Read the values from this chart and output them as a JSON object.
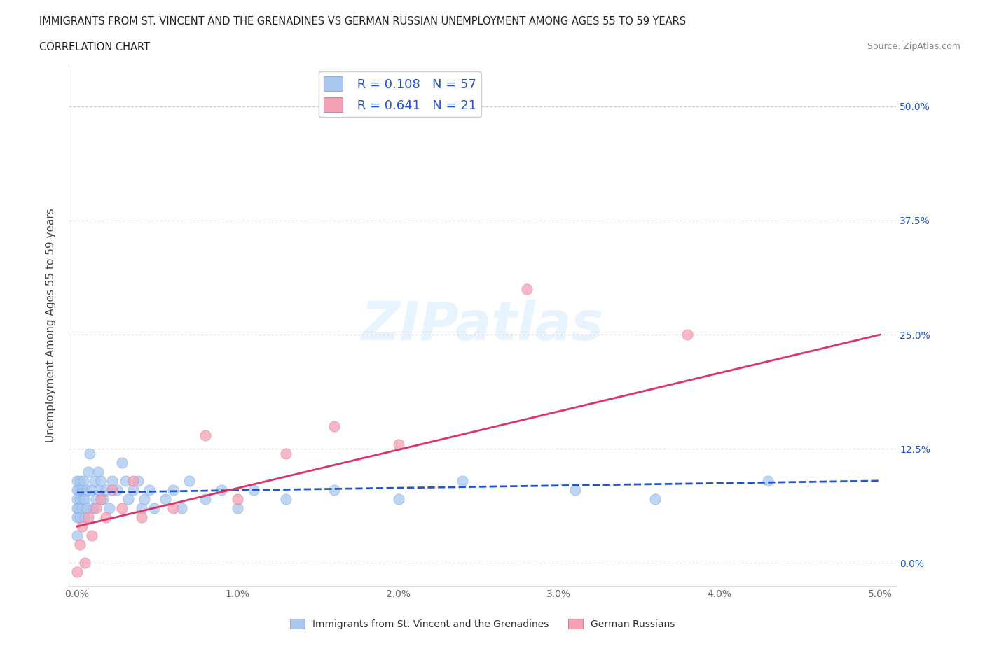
{
  "title_line1": "IMMIGRANTS FROM ST. VINCENT AND THE GRENADINES VS GERMAN RUSSIAN UNEMPLOYMENT AMONG AGES 55 TO 59 YEARS",
  "title_line2": "CORRELATION CHART",
  "source": "Source: ZipAtlas.com",
  "ylabel": "Unemployment Among Ages 55 to 59 years",
  "xlim": [
    -0.0005,
    0.051
  ],
  "ylim": [
    -0.025,
    0.545
  ],
  "yticks": [
    0.0,
    0.125,
    0.25,
    0.375,
    0.5
  ],
  "ytick_labels": [
    "0.0%",
    "12.5%",
    "25.0%",
    "37.5%",
    "50.0%"
  ],
  "xticks": [
    0.0,
    0.01,
    0.02,
    0.03,
    0.04,
    0.05
  ],
  "xtick_labels": [
    "0.0%",
    "1.0%",
    "2.0%",
    "3.0%",
    "4.0%",
    "5.0%"
  ],
  "blue_color": "#a8c8f0",
  "pink_color": "#f4a0b5",
  "blue_line_color": "#2255cc",
  "pink_line_color": "#dd3366",
  "legend_R1": "R = 0.108",
  "legend_N1": "N = 57",
  "legend_R2": "R = 0.641",
  "legend_N2": "N = 21",
  "legend_text_color": "#2255cc",
  "blue_scatter_x": [
    0.0,
    0.0,
    0.0,
    0.0,
    0.0,
    0.0,
    0.0001,
    0.0001,
    0.0002,
    0.0002,
    0.0002,
    0.0003,
    0.0003,
    0.0004,
    0.0004,
    0.0005,
    0.0005,
    0.0006,
    0.0006,
    0.0007,
    0.0008,
    0.0009,
    0.001,
    0.0011,
    0.0012,
    0.0013,
    0.0014,
    0.0015,
    0.0016,
    0.0018,
    0.002,
    0.0022,
    0.0025,
    0.0028,
    0.003,
    0.0032,
    0.0035,
    0.0038,
    0.004,
    0.0042,
    0.0045,
    0.0048,
    0.0055,
    0.006,
    0.0065,
    0.007,
    0.008,
    0.009,
    0.01,
    0.011,
    0.013,
    0.016,
    0.02,
    0.024,
    0.031,
    0.036,
    0.043
  ],
  "blue_scatter_y": [
    0.03,
    0.05,
    0.06,
    0.07,
    0.08,
    0.09,
    0.06,
    0.08,
    0.05,
    0.07,
    0.09,
    0.06,
    0.08,
    0.07,
    0.09,
    0.05,
    0.07,
    0.08,
    0.06,
    0.1,
    0.12,
    0.08,
    0.06,
    0.09,
    0.07,
    0.1,
    0.08,
    0.09,
    0.07,
    0.08,
    0.06,
    0.09,
    0.08,
    0.11,
    0.09,
    0.07,
    0.08,
    0.09,
    0.06,
    0.07,
    0.08,
    0.06,
    0.07,
    0.08,
    0.06,
    0.09,
    0.07,
    0.08,
    0.06,
    0.08,
    0.07,
    0.08,
    0.07,
    0.09,
    0.08,
    0.07,
    0.09
  ],
  "pink_scatter_x": [
    0.0,
    0.0002,
    0.0003,
    0.0005,
    0.0007,
    0.0009,
    0.0012,
    0.0015,
    0.0018,
    0.0022,
    0.0028,
    0.0035,
    0.004,
    0.006,
    0.008,
    0.01,
    0.013,
    0.016,
    0.02,
    0.028,
    0.038
  ],
  "pink_scatter_y": [
    -0.01,
    0.02,
    0.04,
    0.0,
    0.05,
    0.03,
    0.06,
    0.07,
    0.05,
    0.08,
    0.06,
    0.09,
    0.05,
    0.06,
    0.14,
    0.07,
    0.12,
    0.15,
    0.13,
    0.3,
    0.25
  ],
  "pink_line_x0": 0.0,
  "pink_line_y0": 0.04,
  "pink_line_x1": 0.05,
  "pink_line_y1": 0.25,
  "blue_line_x0": 0.0,
  "blue_line_y0": 0.077,
  "blue_line_x1": 0.05,
  "blue_line_y1": 0.09,
  "grid_color": "#cccccc",
  "background_color": "#ffffff",
  "watermark_color": "#ddeeff"
}
